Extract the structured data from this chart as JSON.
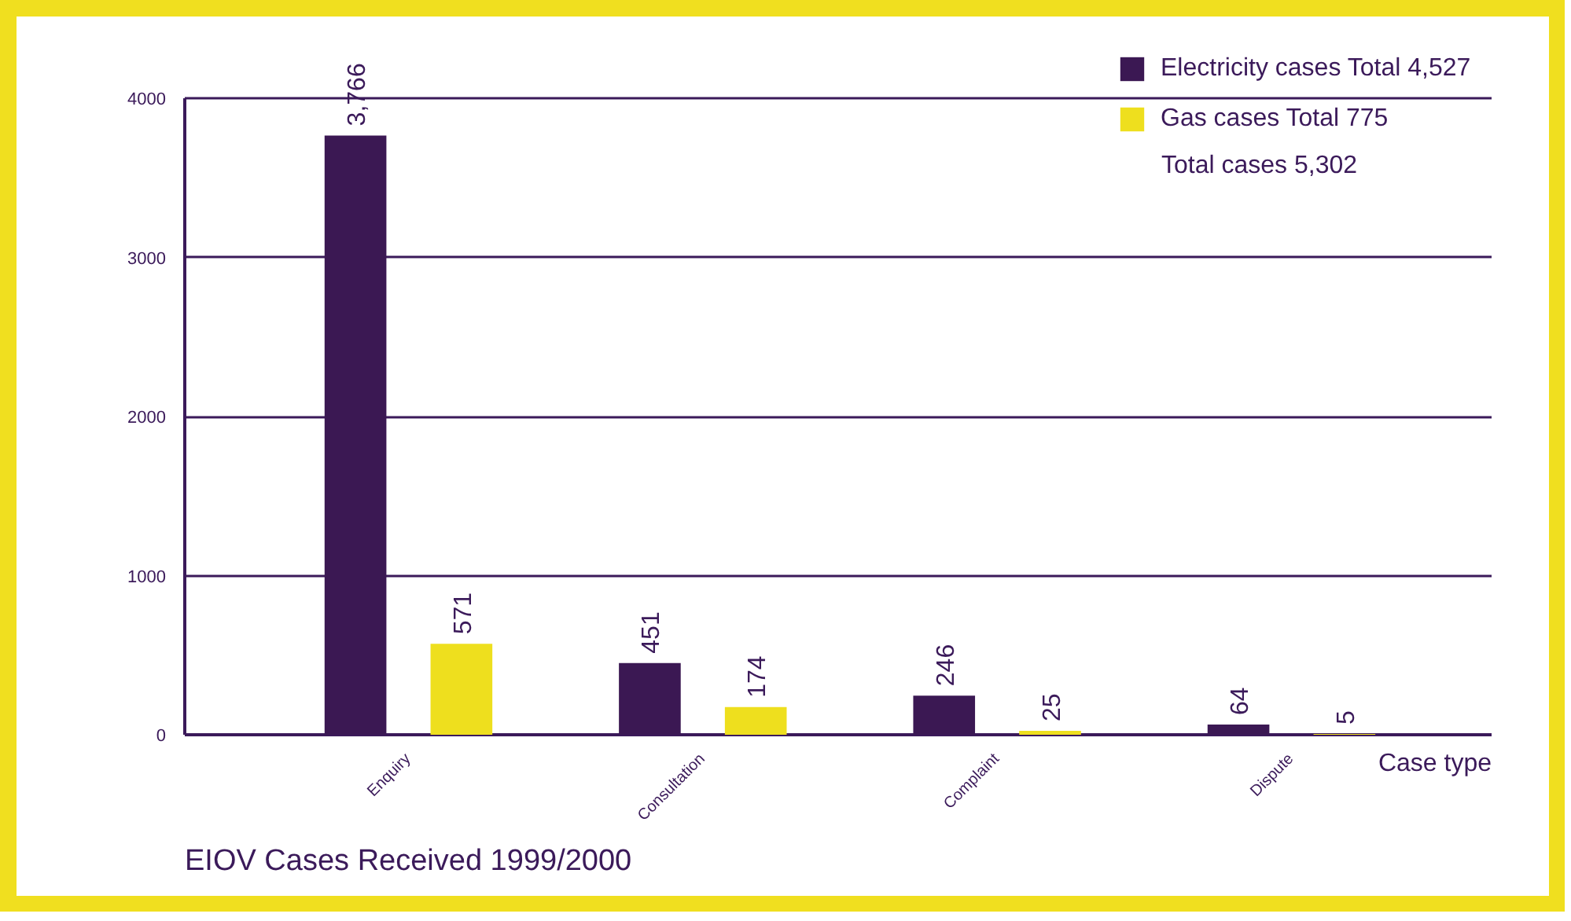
{
  "chart_data": {
    "type": "bar",
    "title": "EIOV Cases Received 1999/2000",
    "xlabel": "Case type",
    "categories": [
      "Enquiry",
      "Consultation",
      "Complaint",
      "Dispute"
    ],
    "series": [
      {
        "name": "Electricity cases Total 4,527",
        "color": "#3b1853",
        "values": [
          3766,
          451,
          246,
          64
        ],
        "value_labels": [
          "3,766",
          "451",
          "246",
          "64"
        ]
      },
      {
        "name": "Gas cases Total 775",
        "color": "#eedf1e",
        "values": [
          571,
          174,
          25,
          5
        ],
        "value_labels": [
          "571",
          "174",
          "25",
          "5"
        ]
      }
    ],
    "ylim": [
      0,
      4000
    ],
    "yticks": [
      0,
      1000,
      2000,
      3000,
      4000
    ],
    "grid": "y",
    "legend": "top right",
    "annotations": [
      "Total cases 5,302"
    ]
  }
}
